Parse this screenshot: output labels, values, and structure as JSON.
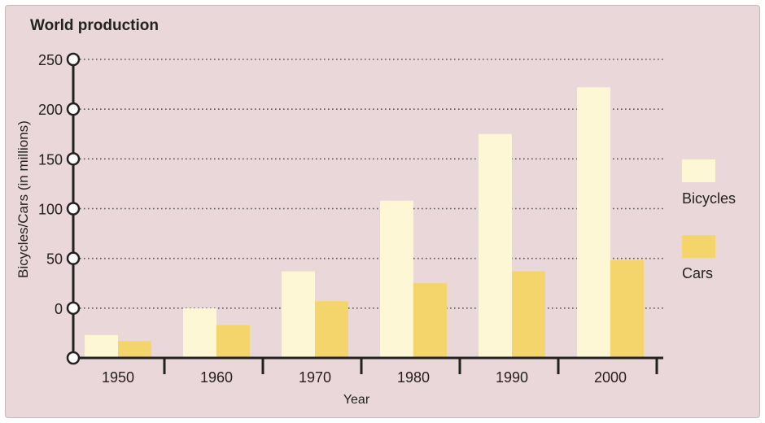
{
  "chart_data": {
    "type": "bar",
    "title": "World production",
    "xlabel": "Year",
    "ylabel": "Bicycles/Cars (in millions)",
    "categories": [
      "1950",
      "1960",
      "1970",
      "1980",
      "1990",
      "2000"
    ],
    "y_ticks": [
      "250",
      "200",
      "150",
      "100",
      "50",
      "0"
    ],
    "ylim": [
      -50,
      250
    ],
    "grid": true,
    "legend_position": "right",
    "series": [
      {
        "name": "Bicycles",
        "color": "#fdf7d6",
        "values": [
          -27,
          0,
          37,
          108,
          175,
          222
        ]
      },
      {
        "name": "Cars",
        "color": "#f4d56c",
        "values": [
          -33,
          -17,
          7,
          25,
          37,
          48
        ]
      }
    ]
  }
}
